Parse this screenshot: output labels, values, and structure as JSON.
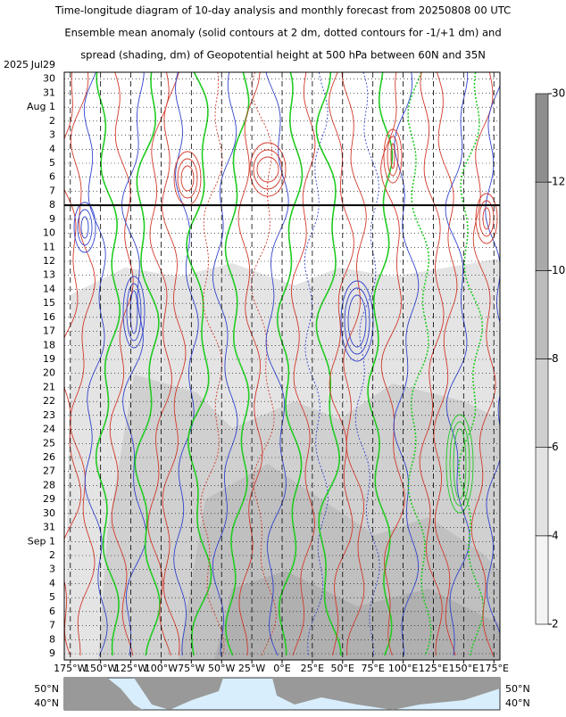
{
  "chart_data": {
    "type": "hovmoller",
    "title_lines": [
      "Time-longitude diagram of 10-day analysis and monthly forecast from 20250808 00 UTC",
      "Ensemble mean anomaly (solid contours at 2 dm, dotted contours for -1/+1 dm) and",
      "spread (shading, dm) of Geopotential height at 500 hPa between 60N and 35N"
    ],
    "year": "2025",
    "categories": [
      "Jul29",
      "30",
      "31",
      "Aug 1",
      "2",
      "3",
      "4",
      "5",
      "6",
      "7",
      "8",
      "9",
      "10",
      "11",
      "12",
      "13",
      "14",
      "15",
      "16",
      "17",
      "18",
      "19",
      "20",
      "21",
      "22",
      "23",
      "24",
      "25",
      "26",
      "27",
      "28",
      "29",
      "30",
      "31",
      "Sep 1",
      "2",
      "3",
      "4",
      "5",
      "6",
      "7",
      "8",
      "9"
    ],
    "highlight_indices": [
      5,
      12,
      19,
      26,
      33,
      40
    ],
    "highlight_color": "#dd0000",
    "xlim": [
      -180,
      180
    ],
    "xticks": [
      {
        "value": -175,
        "label": "175°W"
      },
      {
        "value": -150,
        "label": "150°W"
      },
      {
        "value": -125,
        "label": "125°W"
      },
      {
        "value": -100,
        "label": "100°W"
      },
      {
        "value": -75,
        "label": "75°W"
      },
      {
        "value": -50,
        "label": "50°W"
      },
      {
        "value": -25,
        "label": "25°W"
      },
      {
        "value": 0,
        "label": "0°E"
      },
      {
        "value": 25,
        "label": "25°E"
      },
      {
        "value": 50,
        "label": "50°E"
      },
      {
        "value": 75,
        "label": "75°E"
      },
      {
        "value": 100,
        "label": "100°E"
      },
      {
        "value": 125,
        "label": "125°E"
      },
      {
        "value": 150,
        "label": "150°E"
      },
      {
        "value": 175,
        "label": "175°E"
      }
    ],
    "grid": true,
    "analysis_line": 10,
    "colorbar": {
      "levels": [
        2,
        4,
        6,
        8,
        10,
        12,
        30
      ],
      "colors": [
        "#f4f4f4",
        "#e2e2e2",
        "#cfcfcf",
        "#bcbcbc",
        "#a9a9a9",
        "#8e8e8e"
      ],
      "label_color": "#1a1a6e"
    },
    "map": {
      "labels": [
        "50°N",
        "40°N"
      ]
    }
  }
}
